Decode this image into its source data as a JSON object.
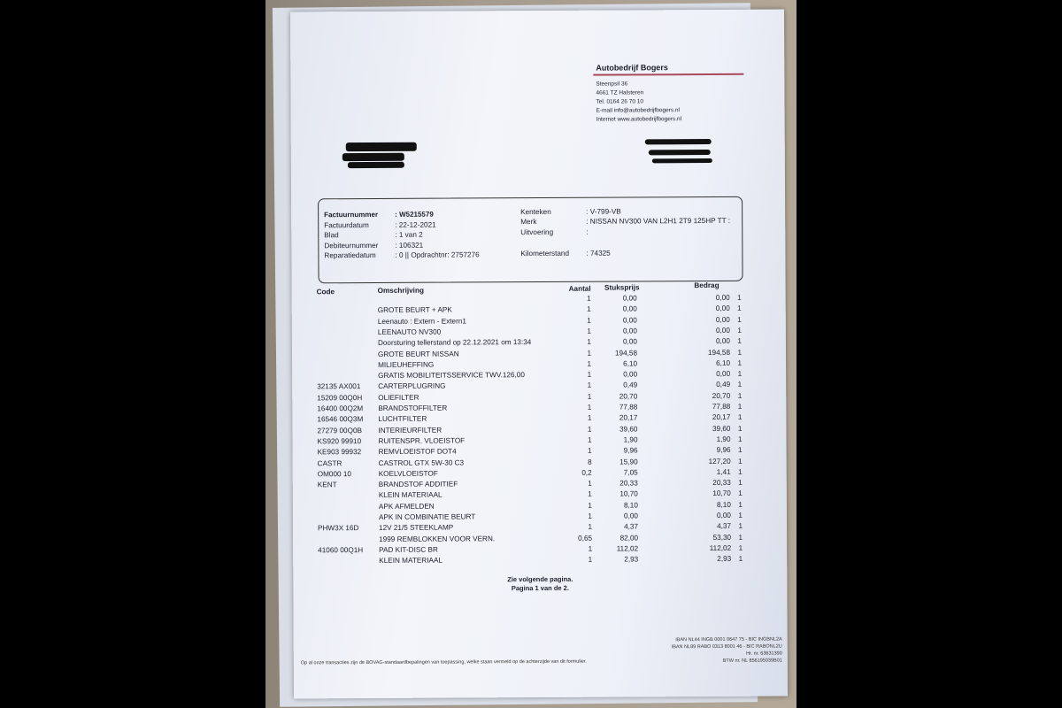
{
  "company": {
    "name": "Autobedrijf Bogers",
    "address": [
      "Steenpsil 36",
      "4661 TZ Halsteren",
      "Tel. 0164 26 70 10",
      "E-mail info@autobedrijfbogers.nl",
      "Internet www.autobedrijfbogers.nl"
    ]
  },
  "invoice_info": {
    "left": [
      {
        "label": "Factuurnummer",
        "value": ": W5215579"
      },
      {
        "label": "Factuurdatum",
        "value": ": 22-12-2021"
      },
      {
        "label": "Blad",
        "value": ": 1 van 2"
      },
      {
        "label": "Debiteurnummer",
        "value": ": 106321"
      },
      {
        "label": "Reparatiedatum",
        "value": ": 0 || Opdrachtnr: 2757276"
      }
    ],
    "right": [
      {
        "label": "Kenteken",
        "value": ": V-799-VB"
      },
      {
        "label": "Merk",
        "value": ": NISSAN NV300 VAN L2H1 2T9 125HP TT :"
      },
      {
        "label": "Uitvoering",
        "value": ":"
      },
      {
        "label": "Kilometerstand",
        "value": ": 74325"
      }
    ]
  },
  "table": {
    "headers": {
      "code": "Code",
      "desc": "Omschrijving",
      "qty": "Aantal",
      "price": "Stuksprijs",
      "amount": "Bedrag"
    },
    "rows": [
      {
        "code": "",
        "desc": "",
        "qty": "1",
        "price": "0,00",
        "amount": "0,00",
        "vat": "1"
      },
      {
        "code": "",
        "desc": "GROTE BEURT + APK",
        "qty": "1",
        "price": "0,00",
        "amount": "0,00",
        "vat": "1"
      },
      {
        "code": "",
        "desc": "Leenauto : Extern - Extern1",
        "qty": "1",
        "price": "0,00",
        "amount": "0,00",
        "vat": "1"
      },
      {
        "code": "",
        "desc": "LEENAUTO NV300",
        "qty": "1",
        "price": "0,00",
        "amount": "0,00",
        "vat": "1"
      },
      {
        "code": "",
        "desc": "Doorsturing tellerstand op 22.12.2021 om 13:34",
        "qty": "1",
        "price": "0,00",
        "amount": "0,00",
        "vat": "1"
      },
      {
        "code": "",
        "desc": "GROTE BEURT NISSAN",
        "qty": "1",
        "price": "194,58",
        "amount": "194,58",
        "vat": "1"
      },
      {
        "code": "",
        "desc": "MILIEUHEFFING",
        "qty": "1",
        "price": "6,10",
        "amount": "6,10",
        "vat": "1"
      },
      {
        "code": "",
        "desc": "GRATIS MOBILITEITSSERVICE TWV.126,00",
        "qty": "1",
        "price": "0,00",
        "amount": "0,00",
        "vat": "1"
      },
      {
        "code": "32135 AX001",
        "desc": "CARTERPLUGRING",
        "qty": "1",
        "price": "0,49",
        "amount": "0,49",
        "vat": "1"
      },
      {
        "code": "15209 00Q0H",
        "desc": "OLIEFILTER",
        "qty": "1",
        "price": "20,70",
        "amount": "20,70",
        "vat": "1"
      },
      {
        "code": "16400 00Q2M",
        "desc": "BRANDSTOFFILTER",
        "qty": "1",
        "price": "77,88",
        "amount": "77,88",
        "vat": "1"
      },
      {
        "code": "16546 00Q3M",
        "desc": "LUCHTFILTER",
        "qty": "1",
        "price": "20,17",
        "amount": "20,17",
        "vat": "1"
      },
      {
        "code": "27279 00Q0B",
        "desc": "INTERIEURFILTER",
        "qty": "1",
        "price": "39,60",
        "amount": "39,60",
        "vat": "1"
      },
      {
        "code": "KS920 99910",
        "desc": "RUITENSPR. VLOEISTOF",
        "qty": "1",
        "price": "1,90",
        "amount": "1,90",
        "vat": "1"
      },
      {
        "code": "KE903 99932",
        "desc": "REMVLOEISTOF DOT4",
        "qty": "1",
        "price": "9,96",
        "amount": "9,96",
        "vat": "1"
      },
      {
        "code": "CASTR",
        "desc": "CASTROL GTX 5W-30 C3",
        "qty": "8",
        "price": "15,90",
        "amount": "127,20",
        "vat": "1"
      },
      {
        "code": "OM000 10",
        "desc": "KOELVLOEISTOF",
        "qty": "0,2",
        "price": "7,05",
        "amount": "1,41",
        "vat": "1"
      },
      {
        "code": "KENT",
        "desc": "BRANDSTOF ADDITIEF",
        "qty": "1",
        "price": "20,33",
        "amount": "20,33",
        "vat": "1"
      },
      {
        "code": "",
        "desc": "KLEIN MATERIAAL",
        "qty": "1",
        "price": "10,70",
        "amount": "10,70",
        "vat": "1"
      },
      {
        "code": "",
        "desc": "APK AFMELDEN",
        "qty": "1",
        "price": "8,10",
        "amount": "8,10",
        "vat": "1"
      },
      {
        "code": "",
        "desc": "APK IN COMBINATIE BEURT",
        "qty": "1",
        "price": "0,00",
        "amount": "0,00",
        "vat": "1"
      },
      {
        "code": "PHW3X 16D",
        "desc": "12V 21/5 STEEKLAMP",
        "qty": "1",
        "price": "4,37",
        "amount": "4,37",
        "vat": "1"
      },
      {
        "code": "",
        "desc": "1999 REMBLOKKEN VOOR VERN.",
        "qty": "0,65",
        "price": "82,00",
        "amount": "53,30",
        "vat": "1"
      },
      {
        "code": "41060 00Q1H",
        "desc": "PAD KIT-DISC BR",
        "qty": "1",
        "price": "112,02",
        "amount": "112,02",
        "vat": "1"
      },
      {
        "code": "",
        "desc": "KLEIN MATERIAAL",
        "qty": "1",
        "price": "2,93",
        "amount": "2,93",
        "vat": "1"
      }
    ]
  },
  "footer": {
    "next": "Zie volgende pagina.",
    "page": "Pagina 1 van de 2.",
    "terms": "Op al onze transacties zijn de BOVAG-standaardbepalingen van toepassing, welke staan vermeld op de achterzijde van dit formulier.",
    "bank": [
      "IBAN NL44 INGB 0001 0647 75 - BIC INGBNL2A",
      "IBAN NL89 RABO 0313 8001 46 - BIC RABONL2U",
      "Hr. nr. 63631390",
      "BTW nr. NL 856195039B01"
    ]
  }
}
